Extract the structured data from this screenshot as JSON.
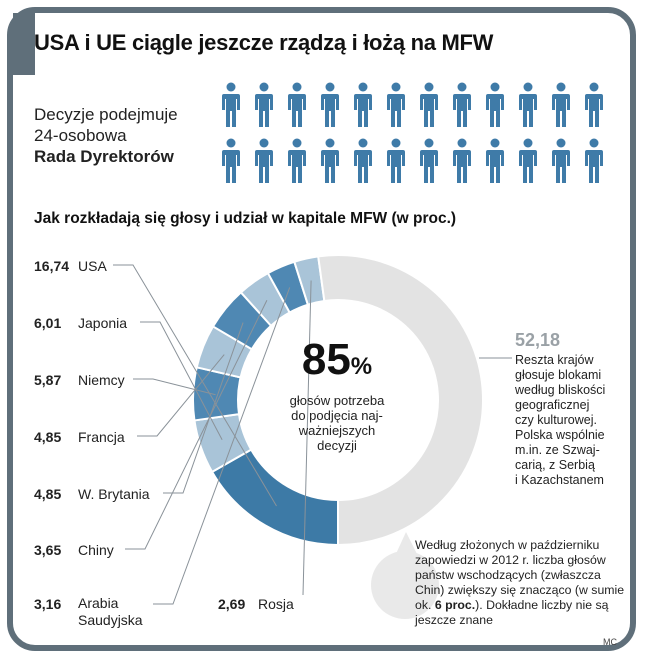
{
  "header": {
    "title": "USA i UE ciągle jeszcze rządzą i łożą na MFW"
  },
  "board": {
    "line1": "Decyzje podejmuje",
    "line2": "24-osobowa",
    "line3": "Rada Dyrektorów",
    "member_count": 24,
    "icon": "person-icon"
  },
  "chart_data": {
    "type": "pie",
    "title": "Jak rozkładają się głosy i udział w kapitale MFW (w proc.)",
    "unit": "%",
    "slices": [
      {
        "label": "USA",
        "value": 16.74,
        "value_text": "16,74"
      },
      {
        "label": "Japonia",
        "value": 6.01,
        "value_text": "6,01"
      },
      {
        "label": "Niemcy",
        "value": 5.87,
        "value_text": "5,87"
      },
      {
        "label": "Francja",
        "value": 4.85,
        "value_text": "4,85"
      },
      {
        "label": "W. Brytania",
        "value": 4.85,
        "value_text": "4,85"
      },
      {
        "label": "Chiny",
        "value": 3.65,
        "value_text": "3,65"
      },
      {
        "label": "Arabia Saudyjska",
        "value": 3.16,
        "value_text": "3,16",
        "label_line1": "Arabia",
        "label_line2": "Saudyjska"
      },
      {
        "label": "Rosja",
        "value": 2.69,
        "value_text": "2,69"
      },
      {
        "label": "Reszta krajów",
        "value": 52.18,
        "value_text": "52,18"
      }
    ],
    "center": {
      "number": "85",
      "unit": "%",
      "line1": "głosów potrzeba",
      "line2": "do podjęcia naj-",
      "line3": "ważniejszych",
      "line4": "decyzji"
    },
    "rest_description": [
      "Reszta krajów",
      "głosuje blokami",
      "według bliskości",
      "geograficznej",
      "czy kulturowej.",
      "Polska wspólnie",
      "m.in. ze Szwaj-",
      "carią, z Serbią",
      "i Kazachstanem"
    ]
  },
  "note": {
    "text_before": "Według złożonych w październiku zapowiedzi w 2012 r. liczba głosów państw wschodzących (zwłaszcza Chin) zwiększy się znacząco (w sumie ok. ",
    "bold": "6 proc.",
    "text_after": "). Dokładne liczby nie są jeszcze znane"
  },
  "footer": {
    "credit": "MC"
  },
  "colors": {
    "frame": "#5f6f7a",
    "usa": "#3d7aa6",
    "slice_a": "#a9c4d8",
    "slice_b": "#4f88b3",
    "rest": "#e3e3e3",
    "people": "#3f7ba8",
    "leader": "#8a9299"
  }
}
